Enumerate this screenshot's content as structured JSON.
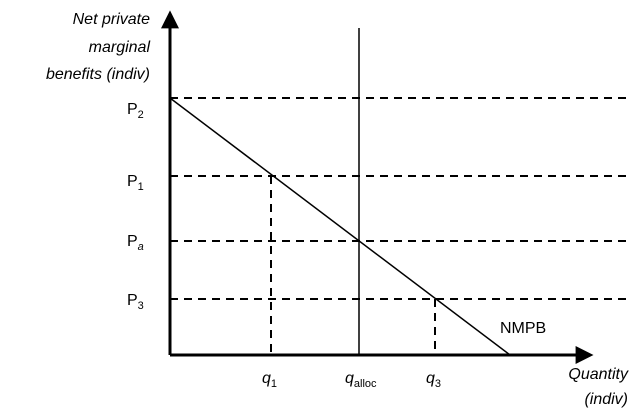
{
  "y_axis_title": [
    "Net private",
    "marginal",
    "benefits (indiv)"
  ],
  "x_axis_title": [
    "Quantity",
    "(indiv)"
  ],
  "curve_label": "NMPB",
  "price_labels": [
    {
      "base": "P",
      "sub": "2"
    },
    {
      "base": "P",
      "sub": "1"
    },
    {
      "base": "P",
      "sub": "a"
    },
    {
      "base": "P",
      "sub": "3"
    }
  ],
  "quantity_labels": [
    {
      "base": "q",
      "sub": "1"
    },
    {
      "base": "q",
      "sub": "alloc"
    },
    {
      "base": "q",
      "sub": "3"
    }
  ]
}
